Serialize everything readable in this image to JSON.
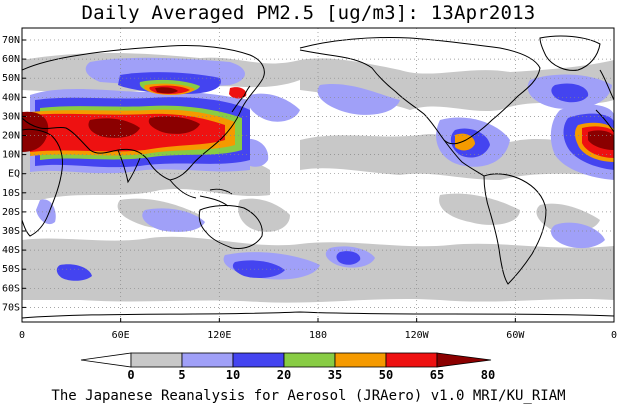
{
  "title": "Daily Averaged PM2.5 [ug/m3]: 13Apr2013",
  "footer": "The Japanese Reanalysis for Aerosol (JRAero) v1.0 MRI/KU_RIAM",
  "lat_labels": [
    "70N",
    "60N",
    "50N",
    "40N",
    "30N",
    "20N",
    "10N",
    "EQ",
    "10S",
    "20S",
    "30S",
    "40S",
    "50S",
    "60S",
    "70S"
  ],
  "lon_labels": [
    "0",
    "60E",
    "120E",
    "180",
    "120W",
    "60W",
    "0"
  ],
  "legend": {
    "breaks": [
      "0",
      "5",
      "10",
      "20",
      "35",
      "50",
      "65",
      "80"
    ],
    "colors": [
      "#ffffff",
      "#c8c8c8",
      "#a0a0f8",
      "#4444f0",
      "#88cc44",
      "#f59a00",
      "#ee1111",
      "#8b0000"
    ]
  },
  "map_colors": {
    "land_outline": "#000000",
    "grid": "#888888"
  }
}
